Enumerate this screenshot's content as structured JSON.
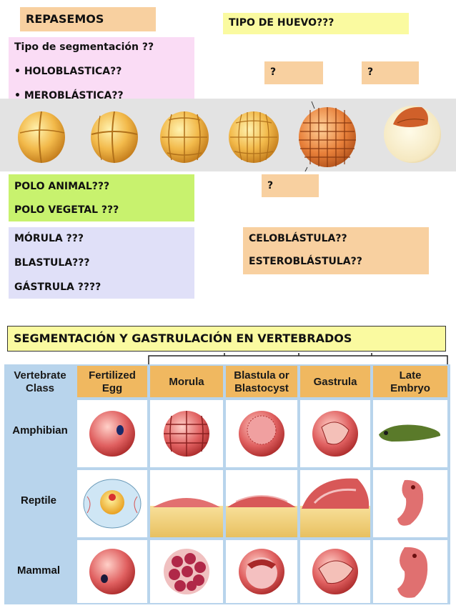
{
  "review": {
    "title": "REPASEMOS",
    "egg_type_question": "TIPO DE HUEVO???",
    "segmentation_title": "Tipo de segmentación ??",
    "segmentation_options": [
      "• HOLOBLASTICA??",
      "• MEROBLÁSTICA??"
    ],
    "question_marks": [
      "?",
      "?",
      "?"
    ],
    "poles": [
      "POLO ANIMAL???",
      "POLO VEGETAL ???"
    ],
    "stages": [
      "MÓRULA ???",
      "BLASTULA???",
      "GÁSTRULA ????"
    ],
    "blastula_types": [
      "CELOBLÁSTULA??",
      "ESTEROBLÁSTULA??"
    ]
  },
  "vertebrates": {
    "title": "SEGMENTACIÓN Y GASTRULACIÓN EN VERTEBRADOS",
    "header_class": [
      "Vertebrate",
      "Class"
    ],
    "columns": [
      [
        "Fertilized",
        "Egg"
      ],
      [
        "Morula"
      ],
      [
        "Blastula or",
        "Blastocyst"
      ],
      [
        "Gastrula"
      ],
      [
        "Late",
        "Embryo"
      ]
    ],
    "rows": [
      "Amphibian",
      "Reptile",
      "Mammal"
    ]
  },
  "colors": {
    "salmon": "#f8d0a0",
    "yellow": "#fafaa0",
    "pink": "#fadcf5",
    "green": "#c8f26e",
    "lavender": "#e0e0f8",
    "table_blue": "#b8d4ec",
    "table_header": "#f0b860",
    "embryo_red": "#d84a4a"
  }
}
